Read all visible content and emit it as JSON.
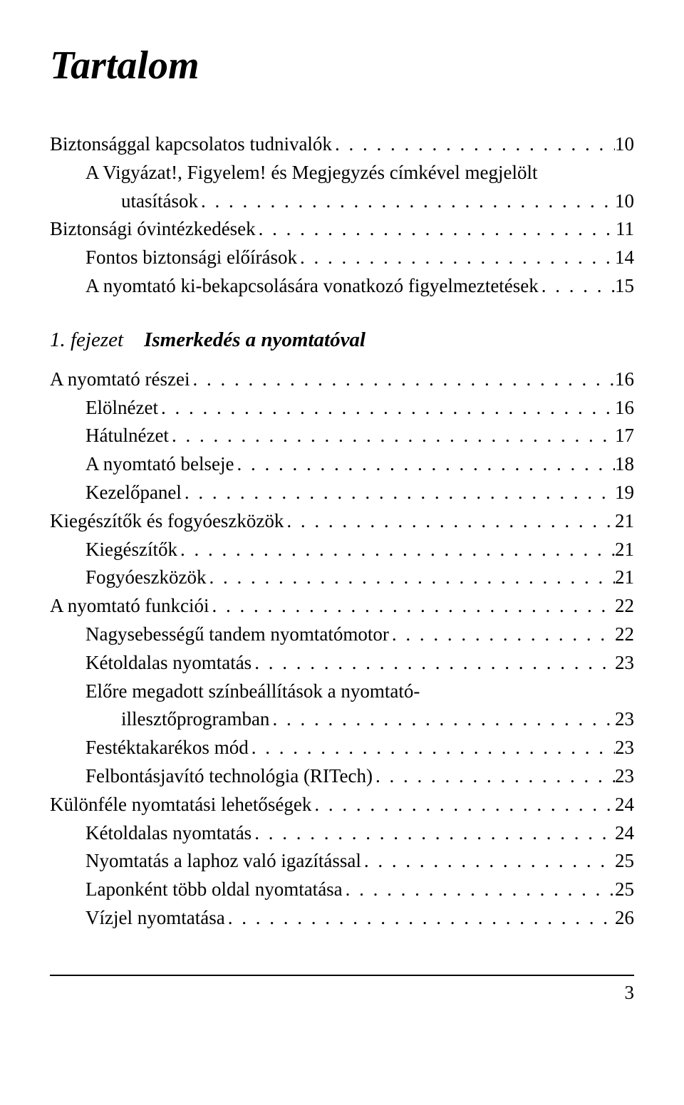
{
  "title": "Tartalom",
  "pageNumber": "3",
  "chapter": {
    "num": "1. fejezet",
    "title": "Ismerkedés a nyomtatóval"
  },
  "entries_before": [
    {
      "label": "Biztonsággal kapcsolatos tudnivalók",
      "page": "10",
      "indent": 0,
      "continuation": null
    },
    {
      "label": "A Vigyázat!, Figyelem! és Megjegyzés címkével megjelölt",
      "page": null,
      "indent": 1,
      "continuation": {
        "label": "utasítások",
        "page": "10",
        "indent": 2
      }
    },
    {
      "label": "Biztonsági óvintézkedések",
      "page": "11",
      "indent": 0,
      "continuation": null
    },
    {
      "label": "Fontos biztonsági előírások",
      "page": "14",
      "indent": 1,
      "continuation": null
    },
    {
      "label": "A nyomtató ki-bekapcsolására vonatkozó figyelmeztetések",
      "page": "15",
      "indent": 1,
      "continuation": null
    }
  ],
  "entries_after": [
    {
      "label": "A nyomtató részei",
      "page": "16",
      "indent": 0,
      "continuation": null
    },
    {
      "label": "Elölnézet",
      "page": "16",
      "indent": 1,
      "continuation": null
    },
    {
      "label": "Hátulnézet",
      "page": "17",
      "indent": 1,
      "continuation": null
    },
    {
      "label": "A nyomtató belseje",
      "page": "18",
      "indent": 1,
      "continuation": null
    },
    {
      "label": "Kezelőpanel",
      "page": "19",
      "indent": 1,
      "continuation": null
    },
    {
      "label": "Kiegészítők és fogyóeszközök",
      "page": "21",
      "indent": 0,
      "continuation": null
    },
    {
      "label": "Kiegészítők",
      "page": "21",
      "indent": 1,
      "continuation": null
    },
    {
      "label": "Fogyóeszközök",
      "page": "21",
      "indent": 1,
      "continuation": null
    },
    {
      "label": "A nyomtató funkciói",
      "page": "22",
      "indent": 0,
      "continuation": null
    },
    {
      "label": "Nagysebességű tandem nyomtatómotor",
      "page": "22",
      "indent": 1,
      "continuation": null
    },
    {
      "label": "Kétoldalas nyomtatás",
      "page": "23",
      "indent": 1,
      "continuation": null
    },
    {
      "label": "Előre megadott színbeállítások a nyomtató-",
      "page": null,
      "indent": 1,
      "continuation": {
        "label": "illesztőprogramban",
        "page": "23",
        "indent": 2
      }
    },
    {
      "label": "Festéktakarékos mód",
      "page": "23",
      "indent": 1,
      "continuation": null
    },
    {
      "label": "Felbontásjavító technológia (RITech)",
      "page": "23",
      "indent": 1,
      "continuation": null
    },
    {
      "label": "Különféle nyomtatási lehetőségek",
      "page": "24",
      "indent": 0,
      "continuation": null
    },
    {
      "label": "Kétoldalas nyomtatás",
      "page": "24",
      "indent": 1,
      "continuation": null
    },
    {
      "label": "Nyomtatás a laphoz való igazítással",
      "page": "25",
      "indent": 1,
      "continuation": null
    },
    {
      "label": "Laponként több oldal nyomtatása",
      "page": "25",
      "indent": 1,
      "continuation": null
    },
    {
      "label": "Vízjel nyomtatása",
      "page": "26",
      "indent": 1,
      "continuation": null
    }
  ]
}
